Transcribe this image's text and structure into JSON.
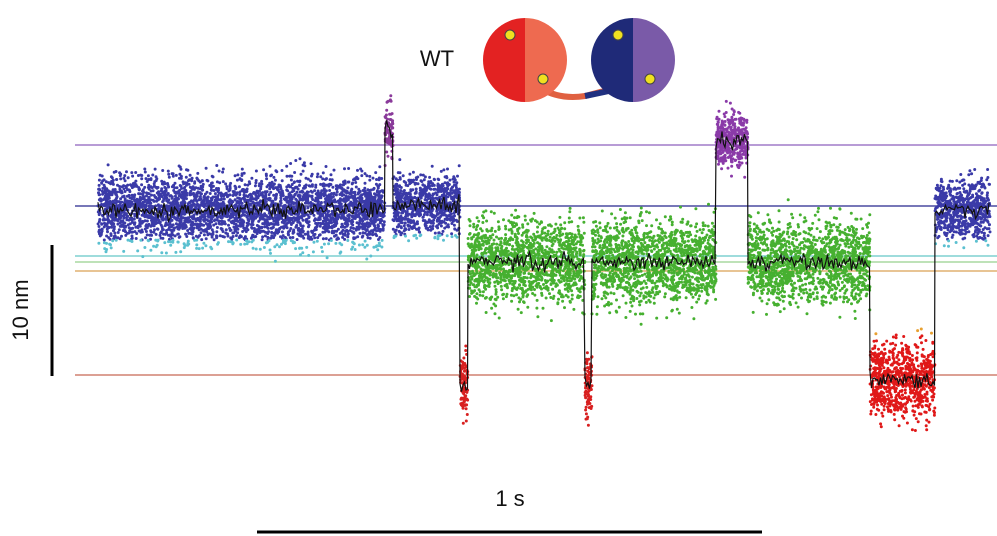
{
  "figure": {
    "construct": "WT",
    "scale_y": "10 nm",
    "scale_x": "1 s"
  }
}
